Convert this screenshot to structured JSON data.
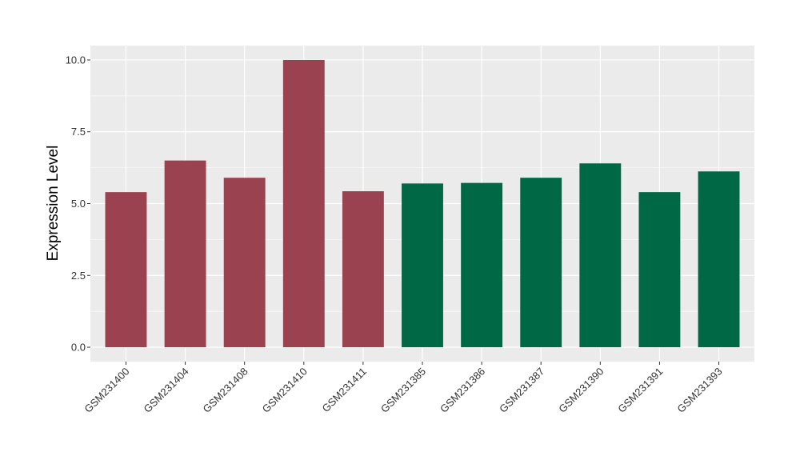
{
  "chart_data": {
    "type": "bar",
    "title": "",
    "xlabel": "",
    "ylabel": "Expression Level",
    "categories": [
      "GSM231400",
      "GSM231404",
      "GSM231408",
      "GSM231410",
      "GSM231411",
      "GSM231385",
      "GSM231386",
      "GSM231387",
      "GSM231390",
      "GSM231391",
      "GSM231393"
    ],
    "values": [
      5.4,
      6.5,
      5.9,
      10.0,
      5.43,
      5.7,
      5.72,
      5.9,
      6.4,
      5.4,
      6.12
    ],
    "bar_colors": [
      "#9A4250",
      "#9A4250",
      "#9A4250",
      "#9A4250",
      "#9A4250",
      "#006845",
      "#006845",
      "#006845",
      "#006845",
      "#006845",
      "#006845"
    ],
    "ylim": [
      -0.5,
      10.5
    ],
    "yticks": [
      0,
      2.5,
      5,
      7.5,
      10
    ],
    "ytick_labels": [
      "0.0",
      "2.5",
      "5.0",
      "7.5",
      "10.0"
    ],
    "grid": true,
    "panel_background": "#EBEBEB",
    "gridline_color": "#FFFFFF"
  }
}
